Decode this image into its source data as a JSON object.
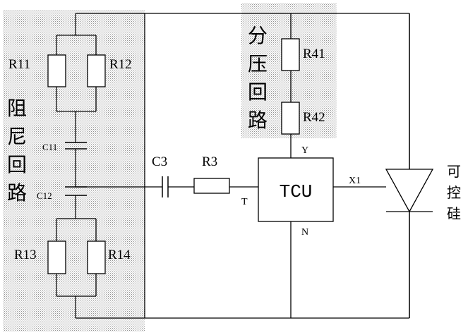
{
  "regions": {
    "damping": {
      "title_chars": [
        "阻",
        "尼",
        "回",
        "路"
      ],
      "shading": "dotted",
      "color": "#4a4a4a"
    },
    "divider": {
      "title_chars": [
        "分",
        "压",
        "回",
        "路"
      ],
      "shading": "dotted",
      "color": "#4a4a4a"
    }
  },
  "components": {
    "r11": "R11",
    "r12": "R12",
    "r13": "R13",
    "r14": "R14",
    "r41": "R41",
    "r42": "R42",
    "r3": "R3",
    "c3": "C3",
    "c11": "C11",
    "c12": "C12",
    "tcu": "TCU"
  },
  "pins": {
    "t": "T",
    "y": "Y",
    "n": "N",
    "x1": "X1"
  },
  "thyristor": {
    "label_chars": [
      "可",
      "控",
      "硅"
    ]
  }
}
